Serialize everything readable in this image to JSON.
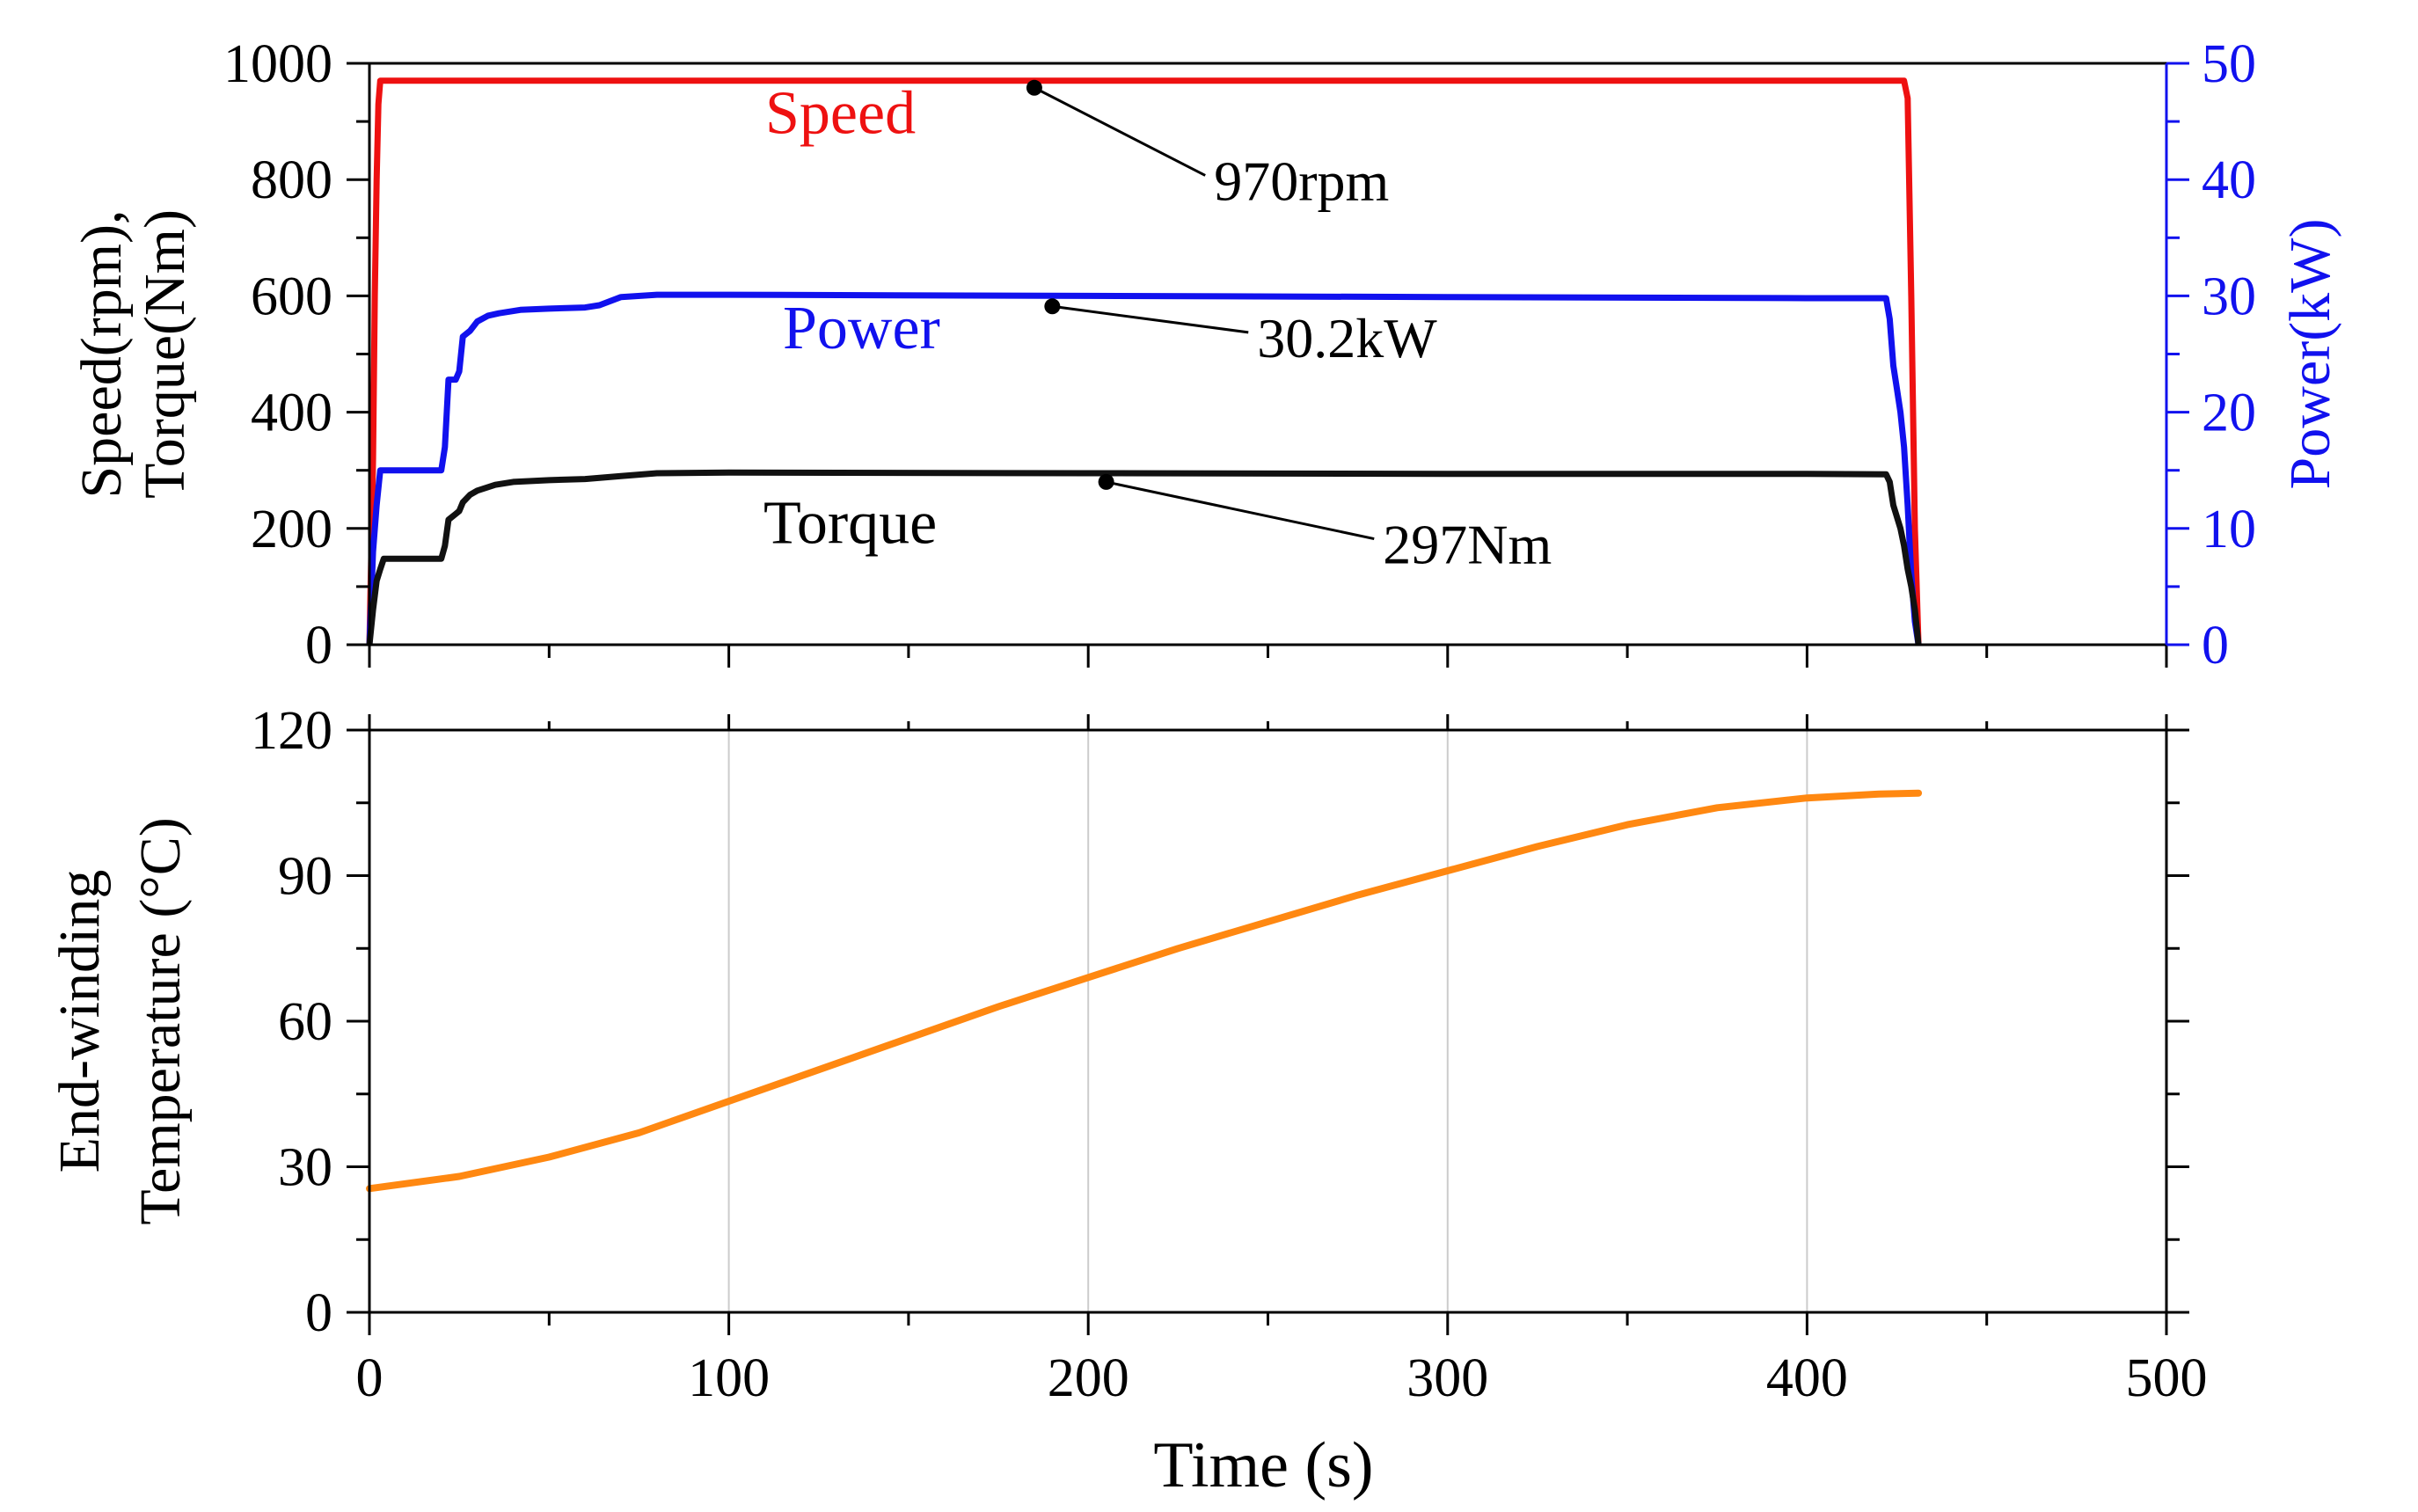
{
  "chart_data": [
    {
      "type": "line",
      "xlabel": "Time (s)",
      "ylabel": [
        "Speed(rpm),",
        "Torque(Nm)"
      ],
      "y2label": "Power(kW)",
      "xlim": [
        0,
        500
      ],
      "ylim": [
        0,
        1000
      ],
      "y2lim": [
        0,
        50
      ],
      "x_ticks": [
        0,
        100,
        200,
        300,
        400,
        500
      ],
      "y_ticks": [
        0,
        200,
        400,
        600,
        800,
        1000
      ],
      "y2_ticks": [
        0,
        10,
        20,
        30,
        40,
        50
      ],
      "grid": false,
      "series": [
        {
          "name": "Speed",
          "axis": "left",
          "color": "#ee1111",
          "points": [
            [
              0,
              0
            ],
            [
              0.5,
              150
            ],
            [
              1,
              320
            ],
            [
              1.5,
              600
            ],
            [
              2,
              800
            ],
            [
              2.5,
              930
            ],
            [
              3,
              970
            ],
            [
              10,
              970
            ],
            [
              100,
              970
            ],
            [
              200,
              970
            ],
            [
              300,
              970
            ],
            [
              400,
              970
            ],
            [
              427,
              970
            ],
            [
              428,
              940
            ],
            [
              429,
              600
            ],
            [
              430,
              200
            ],
            [
              431,
              0
            ]
          ]
        },
        {
          "name": "Power",
          "axis": "right",
          "color": "#1111ee",
          "points": [
            [
              0,
              0
            ],
            [
              1,
              8
            ],
            [
              2,
              12
            ],
            [
              3,
              15
            ],
            [
              20,
              15
            ],
            [
              21,
              17
            ],
            [
              22,
              22.8
            ],
            [
              24,
              22.8
            ],
            [
              25,
              23.5
            ],
            [
              26,
              26.5
            ],
            [
              28,
              27
            ],
            [
              30,
              27.8
            ],
            [
              33,
              28.3
            ],
            [
              36,
              28.5
            ],
            [
              42,
              28.8
            ],
            [
              50,
              28.9
            ],
            [
              60,
              29
            ],
            [
              64,
              29.2
            ],
            [
              70,
              29.9
            ],
            [
              80,
              30.1
            ],
            [
              100,
              30.1
            ],
            [
              200,
              30.0
            ],
            [
              300,
              29.9
            ],
            [
              400,
              29.8
            ],
            [
              422,
              29.8
            ],
            [
              423,
              28
            ],
            [
              424,
              24
            ],
            [
              425,
              22
            ],
            [
              426,
              20
            ],
            [
              427,
              17
            ],
            [
              428,
              12
            ],
            [
              429,
              6
            ],
            [
              430,
              2
            ],
            [
              431,
              0
            ]
          ]
        },
        {
          "name": "Torque",
          "axis": "left",
          "color": "#111111",
          "points": [
            [
              0,
              0
            ],
            [
              1,
              60
            ],
            [
              2,
              110
            ],
            [
              3,
              130
            ],
            [
              4,
              148
            ],
            [
              20,
              148
            ],
            [
              21,
              170
            ],
            [
              22,
              215
            ],
            [
              24,
              225
            ],
            [
              25,
              230
            ],
            [
              26,
              245
            ],
            [
              28,
              258
            ],
            [
              30,
              265
            ],
            [
              35,
              275
            ],
            [
              40,
              280
            ],
            [
              50,
              283
            ],
            [
              60,
              285
            ],
            [
              70,
              290
            ],
            [
              80,
              295
            ],
            [
              100,
              296
            ],
            [
              200,
              295
            ],
            [
              300,
              294
            ],
            [
              400,
              294
            ],
            [
              422,
              293
            ],
            [
              423,
              280
            ],
            [
              424,
              240
            ],
            [
              426,
              200
            ],
            [
              427,
              170
            ],
            [
              428,
              130
            ],
            [
              429,
              100
            ],
            [
              430,
              60
            ],
            [
              431,
              0
            ]
          ]
        }
      ],
      "series_labels": [
        "Speed",
        "Power",
        "Torque"
      ],
      "annotations": [
        {
          "text": "970rpm",
          "point": [
            185,
            958
          ],
          "axis": "left",
          "label_at": [
            235,
            780
          ]
        },
        {
          "text": "30.2kW",
          "point": [
            190,
            29.1
          ],
          "axis": "right",
          "label_at": [
            247,
            25.5
          ]
        },
        {
          "text": "297Nm",
          "point": [
            205,
            280
          ],
          "axis": "left",
          "label_at": [
            282,
            155
          ]
        }
      ]
    },
    {
      "type": "line",
      "xlabel": "Time (s)",
      "ylabel": [
        "End-winding",
        "Temperature (°C)"
      ],
      "xlim": [
        0,
        500
      ],
      "ylim": [
        0,
        120
      ],
      "x_ticks": [
        0,
        100,
        200,
        300,
        400,
        500
      ],
      "y_ticks": [
        0,
        30,
        60,
        90,
        120
      ],
      "grid": true,
      "series": [
        {
          "name": "End-winding Temperature",
          "color": "#ff8811",
          "points": [
            [
              0,
              25.5
            ],
            [
              25,
              28
            ],
            [
              50,
              32
            ],
            [
              75,
              37
            ],
            [
              100,
              43.5
            ],
            [
              125,
              50
            ],
            [
              150,
              56.5
            ],
            [
              175,
              63
            ],
            [
              200,
              69
            ],
            [
              225,
              75
            ],
            [
              250,
              80.5
            ],
            [
              275,
              86
            ],
            [
              300,
              91
            ],
            [
              325,
              96
            ],
            [
              350,
              100.5
            ],
            [
              375,
              104
            ],
            [
              400,
              106
            ],
            [
              420,
              106.8
            ],
            [
              431,
              107
            ]
          ]
        }
      ]
    }
  ]
}
